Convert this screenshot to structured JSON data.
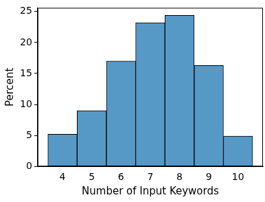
{
  "chart_data": {
    "type": "histogram",
    "x_label": "Number of Input Keywords",
    "y_label": "Percent",
    "bins": [
      3.5,
      4.5,
      5.5,
      6.5,
      7.5,
      8.5,
      9.5,
      10.5
    ],
    "values": [
      5.2,
      9.0,
      17.0,
      23.2,
      24.4,
      16.3,
      4.9
    ],
    "color": "#5799c6",
    "xlim": [
      3.15,
      10.85
    ],
    "xticks": [
      4,
      5,
      6,
      7,
      8,
      9,
      10
    ],
    "ylim": [
      0,
      25.6
    ],
    "yticks": [
      0,
      5,
      10,
      15,
      20,
      25
    ],
    "grid": false
  }
}
